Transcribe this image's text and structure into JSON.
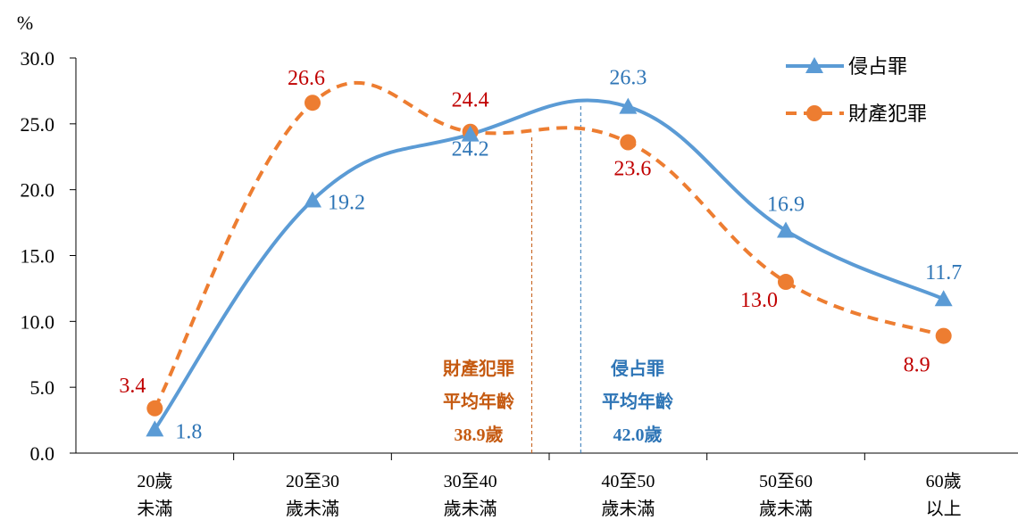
{
  "chart_data": {
    "type": "line",
    "ylabel": "%",
    "ylim": [
      0,
      30
    ],
    "yticks": [
      "0.0",
      "5.0",
      "10.0",
      "15.0",
      "20.0",
      "25.0",
      "30.0"
    ],
    "categories": [
      [
        "20歲",
        "未滿"
      ],
      [
        "20至30",
        "歲未滿"
      ],
      [
        "30至40",
        "歲未滿"
      ],
      [
        "40至50",
        "歲未滿"
      ],
      [
        "50至60",
        "歲未滿"
      ],
      [
        "60歲",
        "以上"
      ]
    ],
    "series": [
      {
        "name": "侵占罪",
        "values": [
          1.8,
          19.2,
          24.2,
          26.3,
          16.9,
          11.7
        ],
        "labels": [
          "1.8",
          "19.2",
          "24.2",
          "26.3",
          "16.9",
          "11.7"
        ],
        "color": "#5B9BD5",
        "label_color": "#2E75B6",
        "marker": "triangle",
        "style": "solid"
      },
      {
        "name": "財產犯罪",
        "values": [
          3.4,
          26.6,
          24.4,
          23.6,
          13.0,
          8.9
        ],
        "labels": [
          "3.4",
          "26.6",
          "24.4",
          "23.6",
          "13.0",
          "8.9"
        ],
        "color": "#ED7D31",
        "label_color": "#C00000",
        "marker": "circle",
        "style": "dashed"
      }
    ],
    "legend_position": "top-right",
    "annotations": [
      {
        "lines": [
          "財產犯罪",
          "平均年齡",
          "38.9歲"
        ],
        "color": "#C55A11",
        "x_age": 38.9
      },
      {
        "lines": [
          "侵占罪",
          "平均年齡",
          "42.0歲"
        ],
        "color": "#2E75B6",
        "x_age": 42.0
      }
    ]
  }
}
